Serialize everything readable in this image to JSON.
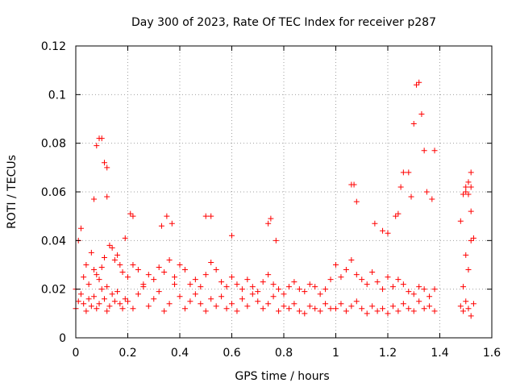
{
  "chart_data": {
    "type": "scatter",
    "title": "Day 300 of 2023, Rate Of TEC Index for receiver p287",
    "xlabel": "GPS time / hours",
    "ylabel": "ROTI / TECUs",
    "xlim": [
      0,
      1.6
    ],
    "ylim": [
      0,
      0.12
    ],
    "xticks": [
      "0",
      "0.2",
      "0.4",
      "0.6",
      "0.8",
      "1",
      "1.2",
      "1.4",
      "1.6"
    ],
    "yticks": [
      "0",
      "0.02",
      "0.04",
      "0.06",
      "0.08",
      "0.1",
      "0.12"
    ],
    "xtick_values": [
      0,
      0.2,
      0.4,
      0.6,
      0.8,
      1.0,
      1.2,
      1.4,
      1.6
    ],
    "ytick_values": [
      0,
      0.02,
      0.04,
      0.06,
      0.08,
      0.1,
      0.12
    ],
    "grid": true,
    "marker": "+",
    "color": "#ff0000",
    "series": [
      {
        "name": "ROTI",
        "x": [
          0.0,
          0.01,
          0.02,
          0.03,
          0.04,
          0.05,
          0.06,
          0.07,
          0.08,
          0.09,
          0.1,
          0.11,
          0.12,
          0.13,
          0.14,
          0.15,
          0.16,
          0.17,
          0.18,
          0.19,
          0.0,
          0.01,
          0.02,
          0.03,
          0.04,
          0.05,
          0.06,
          0.07,
          0.08,
          0.09,
          0.1,
          0.11,
          0.12,
          0.13,
          0.14,
          0.15,
          0.16,
          0.17,
          0.18,
          0.19,
          0.2,
          0.22,
          0.24,
          0.26,
          0.28,
          0.3,
          0.32,
          0.34,
          0.36,
          0.38,
          0.4,
          0.42,
          0.44,
          0.46,
          0.48,
          0.5,
          0.52,
          0.54,
          0.56,
          0.58,
          0.2,
          0.22,
          0.24,
          0.26,
          0.28,
          0.3,
          0.32,
          0.34,
          0.36,
          0.38,
          0.4,
          0.42,
          0.44,
          0.46,
          0.48,
          0.5,
          0.52,
          0.54,
          0.56,
          0.58,
          0.6,
          0.62,
          0.64,
          0.66,
          0.68,
          0.7,
          0.72,
          0.74,
          0.76,
          0.78,
          0.8,
          0.82,
          0.84,
          0.86,
          0.88,
          0.9,
          0.92,
          0.94,
          0.96,
          0.98,
          0.6,
          0.62,
          0.64,
          0.66,
          0.68,
          0.7,
          0.72,
          0.74,
          0.76,
          0.78,
          0.8,
          0.82,
          0.84,
          0.86,
          0.88,
          0.9,
          0.92,
          0.94,
          0.96,
          0.98,
          1.0,
          1.02,
          1.04,
          1.06,
          1.08,
          1.1,
          1.12,
          1.14,
          1.16,
          1.18,
          1.2,
          1.22,
          1.24,
          1.26,
          1.28,
          1.3,
          1.32,
          1.34,
          1.36,
          1.38,
          1.0,
          1.02,
          1.04,
          1.06,
          1.08,
          1.1,
          1.12,
          1.14,
          1.16,
          1.18,
          1.2,
          1.22,
          1.24,
          1.26,
          1.28,
          1.3,
          1.32,
          1.34,
          1.36,
          1.38,
          0.08,
          0.09,
          0.1,
          0.11,
          0.12,
          0.07,
          0.12,
          0.21,
          0.22,
          0.33,
          0.35,
          0.37,
          0.5,
          0.52,
          0.6,
          0.74,
          0.75,
          0.77,
          1.06,
          1.07,
          1.08,
          1.15,
          1.18,
          1.2,
          1.23,
          1.24,
          1.25,
          1.26,
          1.28,
          1.29,
          1.3,
          1.31,
          1.32,
          1.33,
          1.34,
          1.35,
          1.37,
          1.38,
          1.48,
          1.49,
          1.5,
          1.5,
          1.51,
          1.51,
          1.52,
          1.52,
          1.52,
          1.53,
          1.48,
          1.49,
          1.5,
          1.51,
          1.52,
          1.53,
          1.52,
          1.5,
          1.49,
          1.51
        ],
        "y": [
          0.012,
          0.015,
          0.018,
          0.014,
          0.011,
          0.016,
          0.013,
          0.017,
          0.012,
          0.014,
          0.02,
          0.016,
          0.011,
          0.013,
          0.018,
          0.015,
          0.019,
          0.014,
          0.012,
          0.016,
          0.02,
          0.04,
          0.045,
          0.025,
          0.03,
          0.022,
          0.035,
          0.028,
          0.026,
          0.024,
          0.029,
          0.033,
          0.021,
          0.038,
          0.037,
          0.032,
          0.034,
          0.03,
          0.027,
          0.041,
          0.015,
          0.012,
          0.018,
          0.021,
          0.013,
          0.016,
          0.019,
          0.011,
          0.014,
          0.022,
          0.017,
          0.012,
          0.015,
          0.018,
          0.014,
          0.011,
          0.016,
          0.013,
          0.017,
          0.012,
          0.025,
          0.03,
          0.028,
          0.022,
          0.026,
          0.024,
          0.029,
          0.027,
          0.032,
          0.025,
          0.03,
          0.028,
          0.022,
          0.024,
          0.021,
          0.026,
          0.031,
          0.028,
          0.023,
          0.021,
          0.014,
          0.011,
          0.016,
          0.013,
          0.018,
          0.015,
          0.012,
          0.014,
          0.017,
          0.011,
          0.013,
          0.012,
          0.014,
          0.011,
          0.01,
          0.013,
          0.012,
          0.011,
          0.014,
          0.012,
          0.025,
          0.022,
          0.02,
          0.024,
          0.021,
          0.019,
          0.023,
          0.026,
          0.022,
          0.02,
          0.018,
          0.021,
          0.023,
          0.02,
          0.019,
          0.022,
          0.021,
          0.018,
          0.02,
          0.024,
          0.012,
          0.014,
          0.011,
          0.013,
          0.015,
          0.012,
          0.01,
          0.013,
          0.011,
          0.012,
          0.01,
          0.013,
          0.011,
          0.014,
          0.012,
          0.011,
          0.015,
          0.012,
          0.013,
          0.011,
          0.03,
          0.025,
          0.028,
          0.032,
          0.026,
          0.024,
          0.022,
          0.027,
          0.023,
          0.02,
          0.025,
          0.021,
          0.024,
          0.022,
          0.019,
          0.018,
          0.021,
          0.02,
          0.017,
          0.02,
          0.079,
          0.082,
          0.082,
          0.072,
          0.07,
          0.057,
          0.058,
          0.051,
          0.05,
          0.046,
          0.05,
          0.047,
          0.05,
          0.05,
          0.042,
          0.047,
          0.049,
          0.04,
          0.063,
          0.063,
          0.056,
          0.047,
          0.044,
          0.043,
          0.05,
          0.051,
          0.062,
          0.068,
          0.068,
          0.058,
          0.088,
          0.104,
          0.105,
          0.092,
          0.077,
          0.06,
          0.057,
          0.077,
          0.048,
          0.059,
          0.06,
          0.062,
          0.064,
          0.059,
          0.068,
          0.052,
          0.062,
          0.041,
          0.013,
          0.011,
          0.015,
          0.012,
          0.009,
          0.014,
          0.04,
          0.034,
          0.021,
          0.028
        ]
      }
    ]
  }
}
